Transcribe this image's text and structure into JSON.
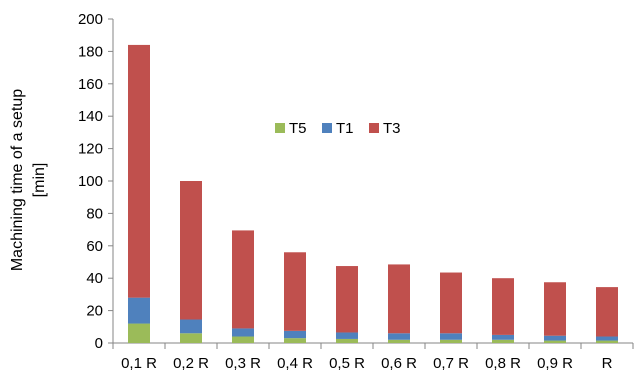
{
  "chart_data": {
    "type": "bar",
    "stacked": true,
    "title": "",
    "xlabel": "",
    "ylabel_line1": "Machining time of a setup",
    "ylabel_line2": "[min]",
    "ylim": [
      0,
      200
    ],
    "ytick_step": 20,
    "grid": false,
    "legend_position": "center",
    "categories": [
      "0,1 R",
      "0,2 R",
      "0,3 R",
      "0,4 R",
      "0,5 R",
      "0,6 R",
      "0,7 R",
      "0,8 R",
      "0,9 R",
      "R"
    ],
    "series": [
      {
        "name": "T5",
        "color": "#9BBB59",
        "values": [
          12,
          6,
          4,
          3,
          2.5,
          2,
          2,
          2,
          1.5,
          1.5
        ]
      },
      {
        "name": "T1",
        "color": "#4F81BD",
        "values": [
          16,
          8.5,
          5,
          4.5,
          4,
          4,
          4,
          3,
          3,
          2.5
        ]
      },
      {
        "name": "T3",
        "color": "#C0504D",
        "values": [
          156,
          85.5,
          60.5,
          48.5,
          41,
          42.5,
          37.5,
          35,
          33,
          30.5
        ]
      }
    ]
  }
}
